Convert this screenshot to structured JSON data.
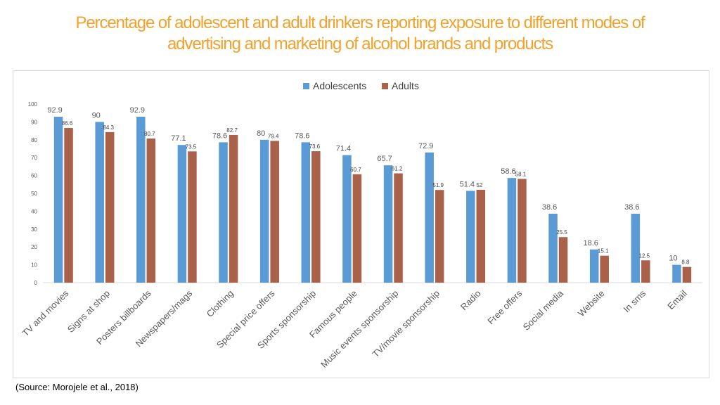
{
  "title_line1": "Percentage of adolescent and adult drinkers reporting exposure to different modes of",
  "title_line2": "advertising and marketing of alcohol brands and products",
  "source": "(Source: Morojele et al., 2018)",
  "colors": {
    "title": "#f0a22e",
    "adolescents": "#5b9bd5",
    "adults": "#a9614a"
  },
  "chart_data": {
    "type": "bar",
    "title": "",
    "xlabel": "",
    "ylabel": "",
    "ylim": [
      0,
      100
    ],
    "yticks": [
      0,
      10,
      20,
      30,
      40,
      50,
      60,
      70,
      80,
      90,
      100
    ],
    "grid": false,
    "legend": "top-center",
    "categories": [
      "TV and movies",
      "Signs at shop",
      "Posters billboards",
      "Newspapers/mags",
      "Clothing",
      "Special price offers",
      "Sports sponsorship",
      "Famous people",
      "Music events sponsorship",
      "TV/movie sponsorship",
      "Radio",
      "Free offers",
      "Social media",
      "Website",
      "In sms",
      "Email"
    ],
    "series": [
      {
        "name": "Adolescents",
        "values": [
          92.9,
          90,
          92.9,
          77.1,
          78.6,
          80,
          78.6,
          71.4,
          65.7,
          72.9,
          51.4,
          58.6,
          38.6,
          18.6,
          38.6,
          10
        ]
      },
      {
        "name": "Adults",
        "values": [
          86.6,
          84.3,
          80.7,
          73.5,
          82.7,
          79.4,
          73.6,
          60.7,
          61.2,
          51.9,
          52,
          58.1,
          25.5,
          15.1,
          12.5,
          8.8
        ]
      }
    ],
    "data_labels": [
      [
        "92.9",
        "90",
        "92.9",
        "77.1",
        "78.6",
        "80",
        "78.6",
        "71.4",
        "65.7",
        "72.9",
        "51.4",
        "58.6",
        "38.6",
        "18.6",
        "38.6",
        "10"
      ],
      [
        "86.6",
        "84.3",
        "80.7",
        "73.5",
        "82.7",
        "79.4",
        "73.6",
        "60.7",
        "61.2",
        "51.9",
        "52",
        "58.1",
        "25.5",
        "15.1",
        "12.5",
        "8.8"
      ]
    ]
  }
}
